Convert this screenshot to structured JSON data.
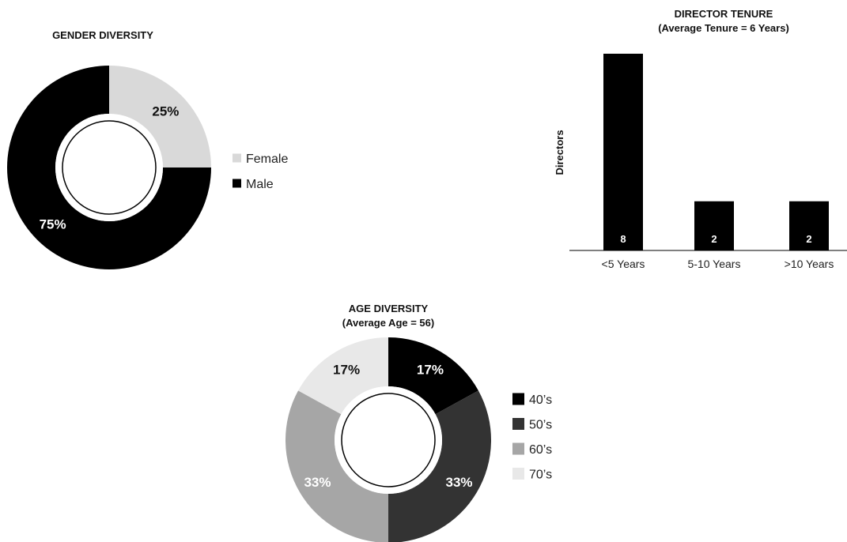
{
  "charts": {
    "gender": {
      "title": "GENDER DIVERSITY",
      "chart_data": {
        "type": "pie",
        "title": "GENDER DIVERSITY",
        "categories": [
          "Female",
          "Male"
        ],
        "values": [
          25,
          75
        ],
        "labels": [
          "25%",
          "75%"
        ],
        "colors": [
          "#d9d9d9",
          "#000000"
        ],
        "label_colors": [
          "#111111",
          "#ffffff"
        ],
        "legend": [
          "Female",
          "Male"
        ],
        "legend_position": "right"
      }
    },
    "tenure": {
      "title": "DIRECTOR TENURE",
      "subtitle": "(Average Tenure = 6 Years)",
      "ylabel": "Directors",
      "chart_data": {
        "type": "bar",
        "title": "DIRECTOR TENURE",
        "subtitle": "(Average Tenure = 6 Years)",
        "categories": [
          "<5 Years",
          "5-10 Years",
          ">10 Years"
        ],
        "values": [
          8,
          2,
          2
        ],
        "data_labels": [
          "8",
          "2",
          "2"
        ],
        "xlabel": "",
        "ylabel": "Directors",
        "ylim": [
          0,
          8
        ],
        "grid": false,
        "bar_color": "#000000"
      }
    },
    "age": {
      "title": "AGE DIVERSITY",
      "subtitle": "(Average Age = 56)",
      "chart_data": {
        "type": "pie",
        "title": "AGE DIVERSITY",
        "subtitle": "(Average Age = 56)",
        "categories": [
          "40’s",
          "50’s",
          "60’s",
          "70’s"
        ],
        "values": [
          17,
          33,
          33,
          17
        ],
        "labels": [
          "17%",
          "33%",
          "33%",
          "17%"
        ],
        "colors": [
          "#000000",
          "#333333",
          "#a6a6a6",
          "#e8e8e8"
        ],
        "label_colors": [
          "#ffffff",
          "#ffffff",
          "#ffffff",
          "#111111"
        ],
        "legend": [
          "40’s",
          "50’s",
          "60’s",
          "70’s"
        ],
        "legend_position": "right"
      }
    }
  }
}
